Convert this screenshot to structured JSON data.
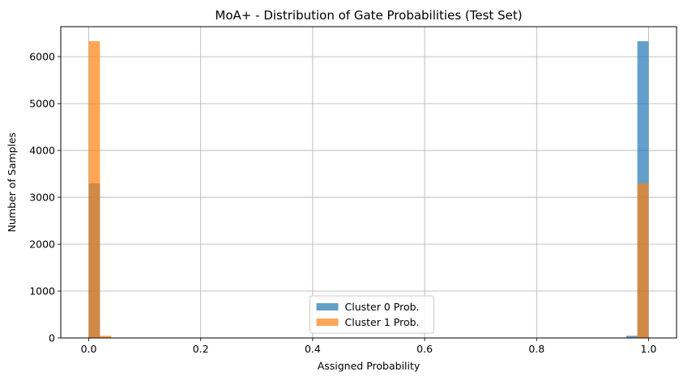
{
  "chart_data": {
    "type": "bar",
    "title": "MoA+ - Distribution of Gate Probabilities (Test Set)",
    "xlabel": "Assigned Probability",
    "ylabel": "Number of Samples",
    "xlim": [
      -0.05,
      1.05
    ],
    "ylim": [
      0,
      6640
    ],
    "xticks": [
      0.0,
      0.2,
      0.4,
      0.6,
      0.8,
      1.0
    ],
    "xtick_labels": [
      "0.0",
      "0.2",
      "0.4",
      "0.6",
      "0.8",
      "1.0"
    ],
    "yticks": [
      0,
      1000,
      2000,
      3000,
      4000,
      5000,
      6000
    ],
    "ytick_labels": [
      "0",
      "1000",
      "2000",
      "3000",
      "4000",
      "5000",
      "6000"
    ],
    "grid": true,
    "legend_position": "bottom-center",
    "bins": 50,
    "bin_range": [
      0.0,
      1.0
    ],
    "overlay_alpha": 0.7,
    "series": [
      {
        "name": "Cluster 0 Prob.",
        "color": "#1f77b4",
        "values": [
          3300,
          12,
          5,
          5,
          5,
          4,
          4,
          4,
          3,
          3,
          3,
          3,
          3,
          3,
          3,
          3,
          3,
          3,
          3,
          3,
          3,
          3,
          3,
          3,
          3,
          3,
          3,
          3,
          3,
          3,
          3,
          3,
          3,
          3,
          3,
          3,
          3,
          3,
          3,
          3,
          3,
          3,
          3,
          3,
          4,
          4,
          5,
          5,
          45,
          6330
        ]
      },
      {
        "name": "Cluster 1 Prob.",
        "color": "#ff7f0e",
        "values": [
          6330,
          45,
          5,
          5,
          4,
          4,
          3,
          3,
          3,
          3,
          3,
          3,
          3,
          3,
          3,
          3,
          3,
          3,
          3,
          3,
          3,
          3,
          3,
          3,
          3,
          3,
          3,
          3,
          3,
          3,
          3,
          3,
          3,
          3,
          3,
          3,
          3,
          3,
          3,
          3,
          3,
          3,
          3,
          3,
          4,
          4,
          5,
          5,
          12,
          3300
        ]
      }
    ]
  }
}
